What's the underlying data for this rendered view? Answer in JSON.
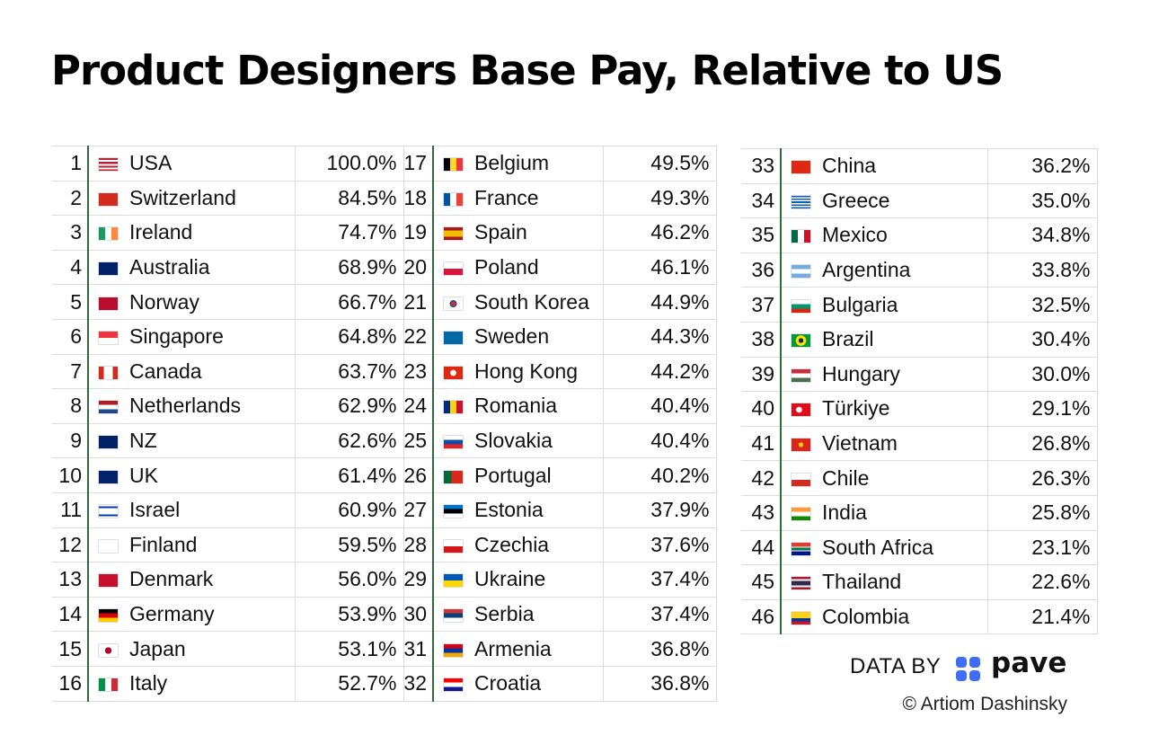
{
  "title": "Product Designers Base Pay, Relative to US",
  "credit": {
    "data_by": "DATA BY",
    "brand": "pave",
    "copyright": "© Artiom Dashinsky"
  },
  "chart_data": {
    "type": "table",
    "title": "Product Designers Base Pay, Relative to US",
    "unit": "%",
    "rows": [
      {
        "rank": "1",
        "country": "USA",
        "value": "100.0%",
        "flag": "us-flag"
      },
      {
        "rank": "2",
        "country": "Switzerland",
        "value": "84.5%",
        "flag": "swiss-flag"
      },
      {
        "rank": "3",
        "country": "Ireland",
        "value": "74.7%",
        "flag": "irish-flag"
      },
      {
        "rank": "4",
        "country": "Australia",
        "value": "68.9%",
        "flag": "australian-flag"
      },
      {
        "rank": "5",
        "country": "Norway",
        "value": "66.7%",
        "flag": "norwegian-flag"
      },
      {
        "rank": "6",
        "country": "Singapore",
        "value": "64.8%",
        "flag": "singapore-flag"
      },
      {
        "rank": "7",
        "country": "Canada",
        "value": "63.7%",
        "flag": "canadian-flag"
      },
      {
        "rank": "8",
        "country": "Netherlands",
        "value": "62.9%",
        "flag": "dutch-flag"
      },
      {
        "rank": "9",
        "country": "NZ",
        "value": "62.6%",
        "flag": "nz-flag"
      },
      {
        "rank": "10",
        "country": "UK",
        "value": "61.4%",
        "flag": "uk-flag"
      },
      {
        "rank": "11",
        "country": "Israel",
        "value": "60.9%",
        "flag": "israeli-flag"
      },
      {
        "rank": "12",
        "country": "Finland",
        "value": "59.5%",
        "flag": "finnish-flag"
      },
      {
        "rank": "13",
        "country": "Denmark",
        "value": "56.0%",
        "flag": "danish-flag"
      },
      {
        "rank": "14",
        "country": "Germany",
        "value": "53.9%",
        "flag": "german-flag"
      },
      {
        "rank": "15",
        "country": "Japan",
        "value": "53.1%",
        "flag": "japanese-flag"
      },
      {
        "rank": "16",
        "country": "Italy",
        "value": "52.7%",
        "flag": "italian-flag"
      },
      {
        "rank": "17",
        "country": "Belgium",
        "value": "49.5%",
        "flag": "belgian-flag"
      },
      {
        "rank": "18",
        "country": "France",
        "value": "49.3%",
        "flag": "french-flag"
      },
      {
        "rank": "19",
        "country": "Spain",
        "value": "46.2%",
        "flag": "spanish-flag"
      },
      {
        "rank": "20",
        "country": "Poland",
        "value": "46.1%",
        "flag": "polish-flag"
      },
      {
        "rank": "21",
        "country": "South Korea",
        "value": "44.9%",
        "flag": "korean-flag"
      },
      {
        "rank": "22",
        "country": "Sweden",
        "value": "44.3%",
        "flag": "swedish-flag"
      },
      {
        "rank": "23",
        "country": "Hong Kong",
        "value": "44.2%",
        "flag": "hong-kong-flag"
      },
      {
        "rank": "24",
        "country": "Romania",
        "value": "40.4%",
        "flag": "romanian-flag"
      },
      {
        "rank": "25",
        "country": "Slovakia",
        "value": "40.4%",
        "flag": "slovak-flag"
      },
      {
        "rank": "26",
        "country": "Portugal",
        "value": "40.2%",
        "flag": "portuguese-flag"
      },
      {
        "rank": "27",
        "country": "Estonia",
        "value": "37.9%",
        "flag": "estonian-flag"
      },
      {
        "rank": "28",
        "country": "Czechia",
        "value": "37.6%",
        "flag": "czech-flag"
      },
      {
        "rank": "29",
        "country": "Ukraine",
        "value": "37.4%",
        "flag": "ukrainian-flag"
      },
      {
        "rank": "30",
        "country": "Serbia",
        "value": "37.4%",
        "flag": "serbian-flag"
      },
      {
        "rank": "31",
        "country": "Armenia",
        "value": "36.8%",
        "flag": "armenian-flag"
      },
      {
        "rank": "32",
        "country": "Croatia",
        "value": "36.8%",
        "flag": "croatian-flag"
      },
      {
        "rank": "33",
        "country": "China",
        "value": "36.2%",
        "flag": "chinese-flag"
      },
      {
        "rank": "34",
        "country": "Greece",
        "value": "35.0%",
        "flag": "greek-flag"
      },
      {
        "rank": "35",
        "country": "Mexico",
        "value": "34.8%",
        "flag": "mexican-flag"
      },
      {
        "rank": "36",
        "country": "Argentina",
        "value": "33.8%",
        "flag": "argentine-flag"
      },
      {
        "rank": "37",
        "country": "Bulgaria",
        "value": "32.5%",
        "flag": "bulgarian-flag"
      },
      {
        "rank": "38",
        "country": "Brazil",
        "value": "30.4%",
        "flag": "brazilian-flag"
      },
      {
        "rank": "39",
        "country": "Hungary",
        "value": "30.0%",
        "flag": "hungarian-flag"
      },
      {
        "rank": "40",
        "country": "Türkiye",
        "value": "29.1%",
        "flag": "turkish-flag"
      },
      {
        "rank": "41",
        "country": "Vietnam",
        "value": "26.8%",
        "flag": "vietnamese-flag"
      },
      {
        "rank": "42",
        "country": "Chile",
        "value": "26.3%",
        "flag": "chilean-flag"
      },
      {
        "rank": "43",
        "country": "India",
        "value": "25.8%",
        "flag": "indian-flag"
      },
      {
        "rank": "44",
        "country": "South Africa",
        "value": "23.1%",
        "flag": "south-african-flag"
      },
      {
        "rank": "45",
        "country": "Thailand",
        "value": "22.6%",
        "flag": "thai-flag"
      },
      {
        "rank": "46",
        "country": "Colombia",
        "value": "21.4%",
        "flag": "colombian-flag"
      }
    ]
  }
}
